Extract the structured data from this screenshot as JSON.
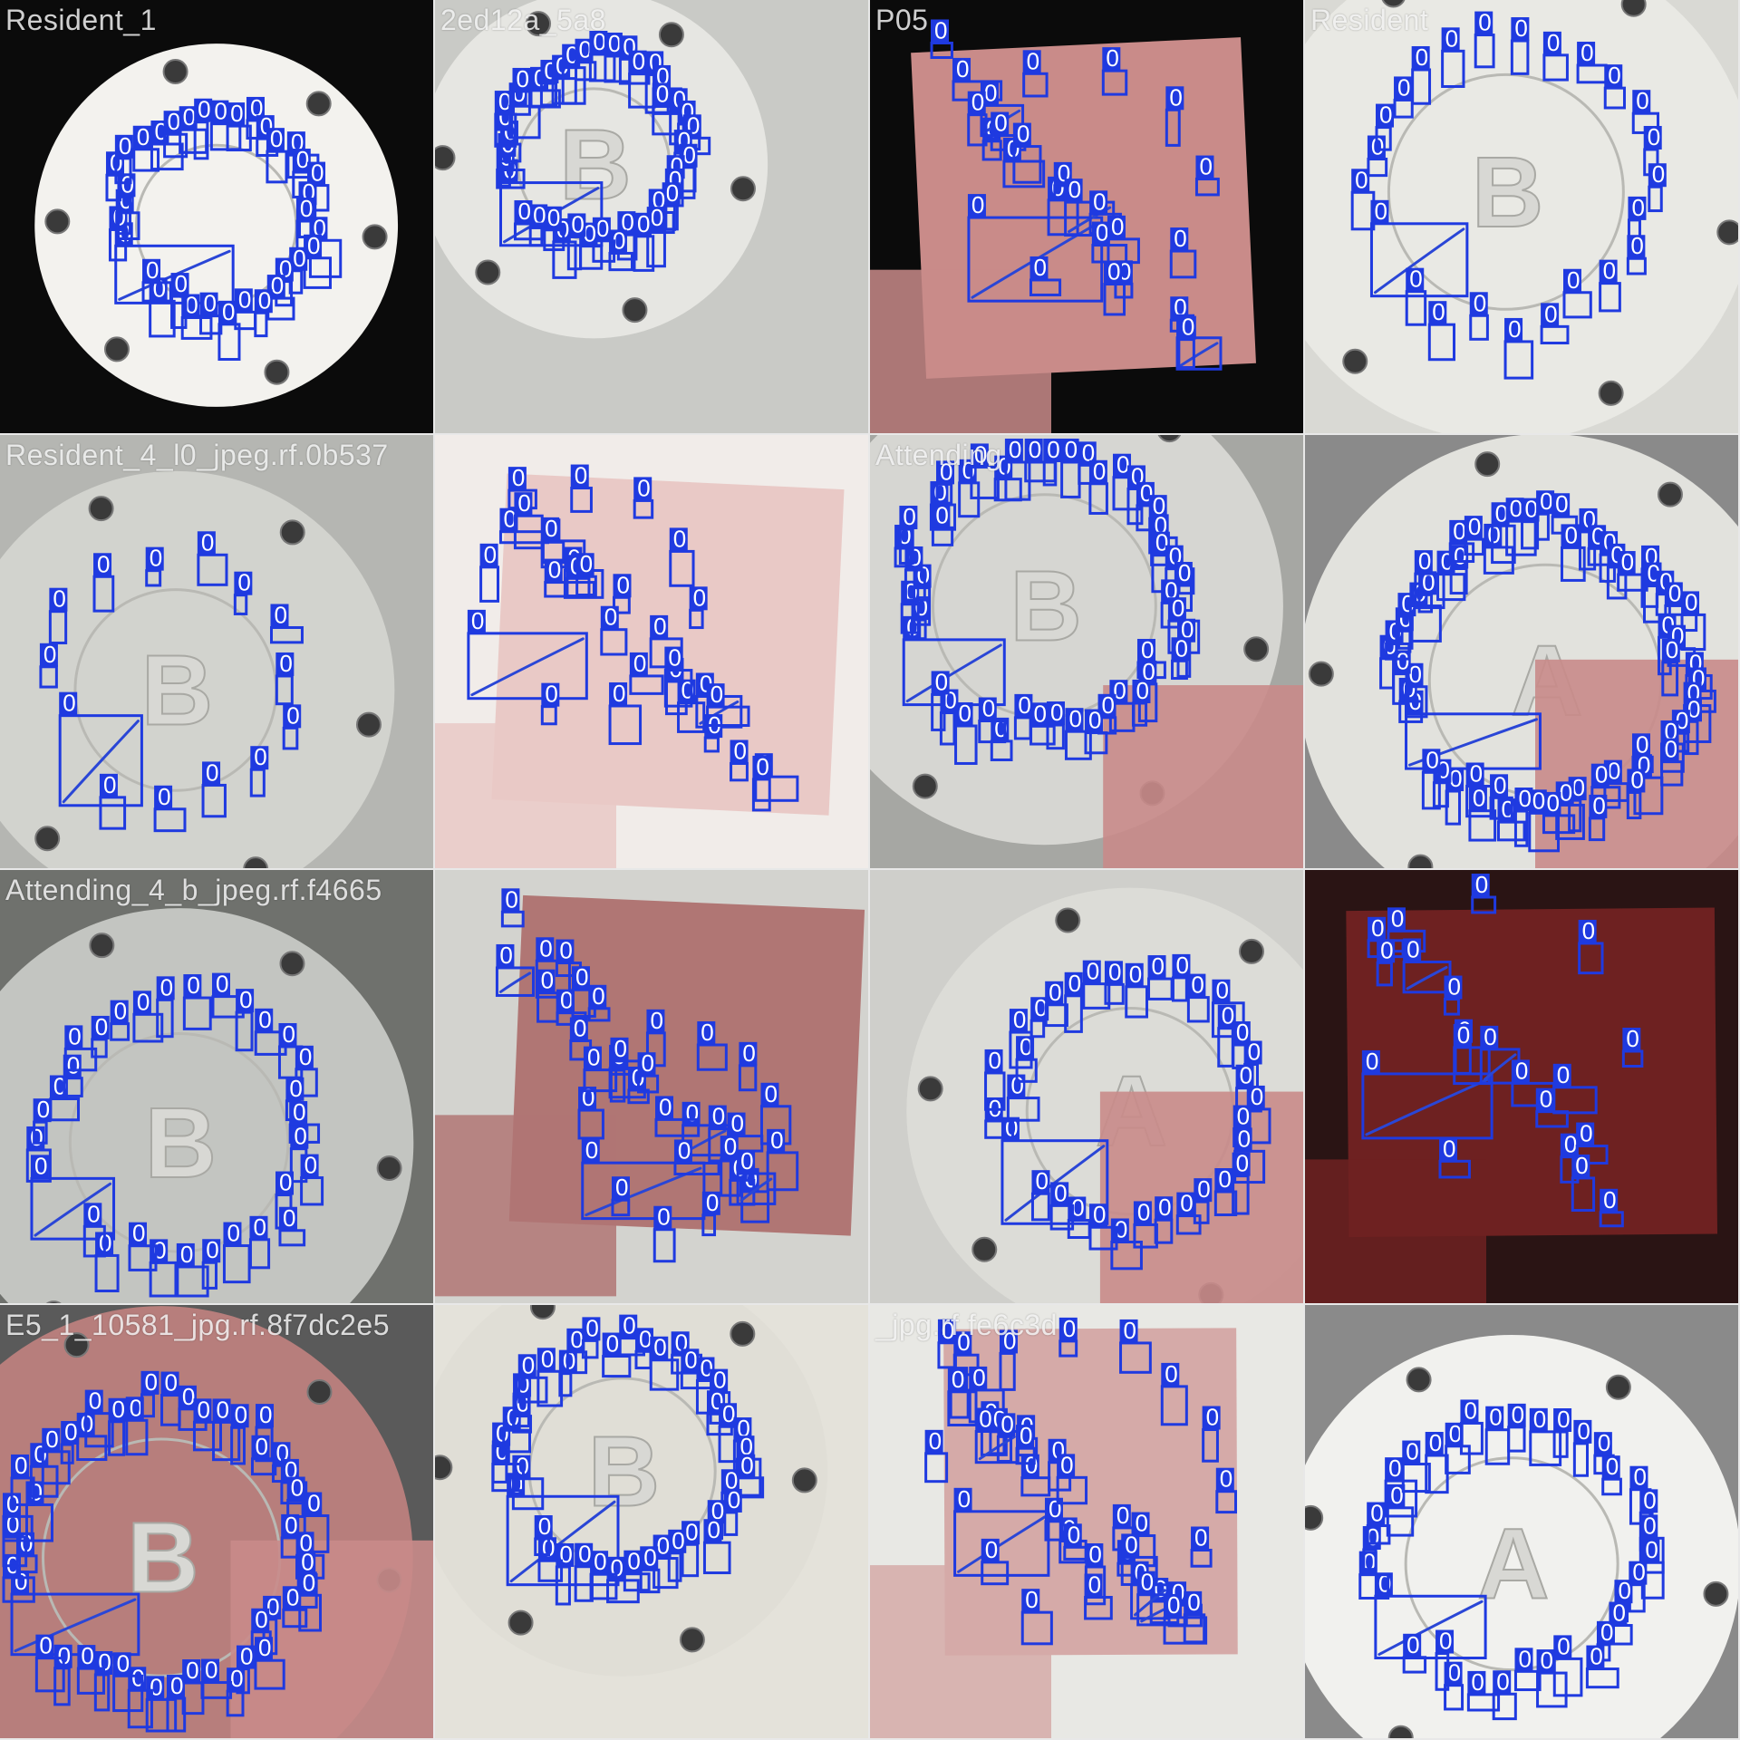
{
  "colors": {
    "box": "#1f3ae0",
    "label_text": "#ffffff",
    "disc_white": "#ecebe6",
    "disc_grey": "#c9cac6",
    "tissue_pink": "#c98b89",
    "tissue_dark": "#6e2121",
    "background_dark": "#0b0b0b",
    "background_grey": "#8a8a8a"
  },
  "box_label": "0",
  "tiles": [
    {
      "filename": "Resident_1",
      "scene": "disc",
      "bg": "#0b0b0b",
      "disc": "#f3f2ee",
      "letter": "",
      "boxes": 34
    },
    {
      "filename": "2ed12a_5a8",
      "scene": "disc",
      "bg": "#c9cac6",
      "disc": "#e6e6e2",
      "letter": "B",
      "boxes": 40
    },
    {
      "filename": "P05",
      "scene": "tissue",
      "bg": "#0b0b0b",
      "disc": "#c98b89",
      "letter": "",
      "boxes": 26
    },
    {
      "filename": "Resident",
      "scene": "disc",
      "bg": "#d9d9d4",
      "disc": "#e9e9e4",
      "letter": "B",
      "boxes": 24
    },
    {
      "filename": "Resident_4_l0_jpeg.rf.0b537",
      "scene": "disc",
      "bg": "#b5b6b2",
      "disc": "#d2d3ce",
      "letter": "B",
      "boxes": 14
    },
    {
      "filename": "",
      "scene": "tissue",
      "bg": "#f1ece9",
      "disc": "#e9c9c6",
      "letter": "",
      "boxes": 30
    },
    {
      "filename": "Attending",
      "scene": "mixed",
      "bg": "#a6a7a3",
      "disc": "#d6d6d2",
      "letter": "B",
      "boxes": 46
    },
    {
      "filename": "",
      "scene": "mixed",
      "bg": "#8a8a8a",
      "disc": "#e2e2dd",
      "letter": "A",
      "boxes": 60
    },
    {
      "filename": "Attending_4_b_jpeg.rf.f4665",
      "scene": "disc",
      "bg": "#6f716d",
      "disc": "#c3c5c1",
      "letter": "B",
      "boxes": 30
    },
    {
      "filename": "",
      "scene": "tissue",
      "bg": "#d3d3cf",
      "disc": "#b07674",
      "letter": "",
      "boxes": 34
    },
    {
      "filename": "",
      "scene": "mixed",
      "bg": "#cfcfcb",
      "disc": "#dcdcd7",
      "letter": "A",
      "boxes": 34
    },
    {
      "filename": "",
      "scene": "tissue",
      "bg": "#2a1414",
      "disc": "#6e2121",
      "letter": "",
      "boxes": 20
    },
    {
      "filename": "E5_1_10581_jpg.rf.8f7dc2e5",
      "scene": "mixed",
      "bg": "#5a5a5a",
      "disc": "#b77e7c",
      "letter": "B",
      "boxes": 46
    },
    {
      "filename": "",
      "scene": "disc",
      "bg": "#e4e2da",
      "disc": "#e0ded6",
      "letter": "B",
      "boxes": 40
    },
    {
      "filename": "_jpg.rf.fe6c3d",
      "scene": "tissue",
      "bg": "#e8e8e4",
      "disc": "#d5aaa8",
      "letter": "",
      "boxes": 40
    },
    {
      "filename": "",
      "scene": "disc",
      "bg": "#8a8a8a",
      "disc": "#f1f1ee",
      "letter": "A",
      "boxes": 34
    }
  ]
}
